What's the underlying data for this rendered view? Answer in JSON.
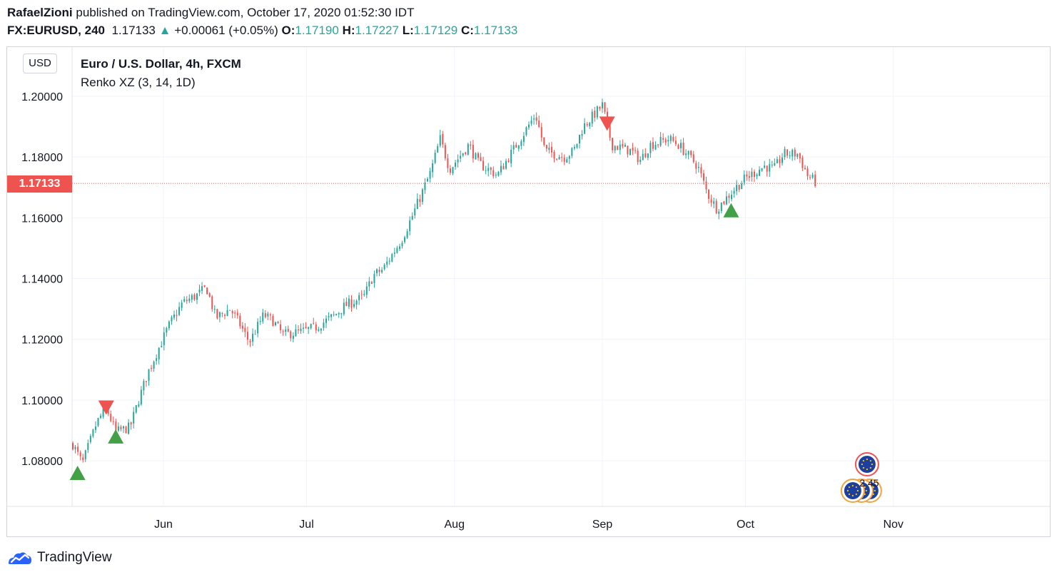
{
  "header": {
    "author": "RafaelZioni",
    "published_text": "published on TradingView.com, October 17, 2020 01:52:30 IDT",
    "symbol": "FX:EURUSD, 240",
    "last": "1.17133",
    "change": "+0.00061 (+0.05%)",
    "o_label": "O:",
    "o_value": "1.17190",
    "h_label": "H:",
    "h_value": "1.17227",
    "l_label": "L:",
    "l_value": "1.17129",
    "c_label": "C:",
    "c_value": "1.17133"
  },
  "currency_button": "USD",
  "chart_title": "Euro / U.S. Dollar, 4h, FXCM",
  "indicator_label": "Renko XZ (3, 14, 1D)",
  "price_tag": "1.17133",
  "brand": "TradingView",
  "colors": {
    "up": "#26a69a",
    "down": "#ef5350",
    "buy_marker": "#43a047",
    "sell_marker": "#ef5350",
    "grid": "#f0f3fa"
  },
  "chart_data": {
    "type": "candlestick",
    "title": "Euro / U.S. Dollar, 4h, FXCM",
    "x_ticks": [
      "Jun",
      "Jul",
      "Aug",
      "Sep",
      "Oct",
      "Nov"
    ],
    "y_ticks": [
      "1.20000",
      "1.18000",
      "1.16000",
      "1.14000",
      "1.12000",
      "1.10000",
      "1.08000"
    ],
    "ylim": [
      1.065,
      1.2035
    ],
    "last_price": 1.17133,
    "grid": true,
    "close_path": [
      {
        "date": "2020-05-13",
        "close": 1.0855
      },
      {
        "date": "2020-05-15",
        "close": 1.079
      },
      {
        "date": "2020-05-18",
        "close": 1.0925
      },
      {
        "date": "2020-05-20",
        "close": 1.0975
      },
      {
        "date": "2020-05-22",
        "close": 1.0895
      },
      {
        "date": "2020-05-25",
        "close": 1.091
      },
      {
        "date": "2020-05-27",
        "close": 1.101
      },
      {
        "date": "2020-05-29",
        "close": 1.11
      },
      {
        "date": "2020-06-02",
        "close": 1.124
      },
      {
        "date": "2020-06-05",
        "close": 1.132
      },
      {
        "date": "2020-06-08",
        "close": 1.1345
      },
      {
        "date": "2020-06-10",
        "close": 1.137
      },
      {
        "date": "2020-06-12",
        "close": 1.127
      },
      {
        "date": "2020-06-15",
        "close": 1.13
      },
      {
        "date": "2020-06-17",
        "close": 1.125
      },
      {
        "date": "2020-06-19",
        "close": 1.119
      },
      {
        "date": "2020-06-22",
        "close": 1.128
      },
      {
        "date": "2020-06-24",
        "close": 1.126
      },
      {
        "date": "2020-06-26",
        "close": 1.1215
      },
      {
        "date": "2020-06-30",
        "close": 1.1225
      },
      {
        "date": "2020-07-03",
        "close": 1.124
      },
      {
        "date": "2020-07-07",
        "close": 1.128
      },
      {
        "date": "2020-07-09",
        "close": 1.131
      },
      {
        "date": "2020-07-13",
        "close": 1.134
      },
      {
        "date": "2020-07-15",
        "close": 1.141
      },
      {
        "date": "2020-07-17",
        "close": 1.143
      },
      {
        "date": "2020-07-21",
        "close": 1.153
      },
      {
        "date": "2020-07-23",
        "close": 1.16
      },
      {
        "date": "2020-07-27",
        "close": 1.175
      },
      {
        "date": "2020-07-29",
        "close": 1.186
      },
      {
        "date": "2020-07-31",
        "close": 1.176
      },
      {
        "date": "2020-08-04",
        "close": 1.184
      },
      {
        "date": "2020-08-06",
        "close": 1.178
      },
      {
        "date": "2020-08-10",
        "close": 1.174
      },
      {
        "date": "2020-08-12",
        "close": 1.179
      },
      {
        "date": "2020-08-14",
        "close": 1.184
      },
      {
        "date": "2020-08-18",
        "close": 1.194
      },
      {
        "date": "2020-08-20",
        "close": 1.182
      },
      {
        "date": "2020-08-24",
        "close": 1.18
      },
      {
        "date": "2020-08-26",
        "close": 1.182
      },
      {
        "date": "2020-08-28",
        "close": 1.19
      },
      {
        "date": "2020-09-01",
        "close": 1.197
      },
      {
        "date": "2020-09-03",
        "close": 1.184
      },
      {
        "date": "2020-09-07",
        "close": 1.182
      },
      {
        "date": "2020-09-09",
        "close": 1.179
      },
      {
        "date": "2020-09-11",
        "close": 1.184
      },
      {
        "date": "2020-09-15",
        "close": 1.186
      },
      {
        "date": "2020-09-17",
        "close": 1.184
      },
      {
        "date": "2020-09-21",
        "close": 1.177
      },
      {
        "date": "2020-09-23",
        "close": 1.168
      },
      {
        "date": "2020-09-25",
        "close": 1.163
      },
      {
        "date": "2020-09-29",
        "close": 1.17
      },
      {
        "date": "2020-10-01",
        "close": 1.173
      },
      {
        "date": "2020-10-05",
        "close": 1.177
      },
      {
        "date": "2020-10-07",
        "close": 1.176
      },
      {
        "date": "2020-10-09",
        "close": 1.181
      },
      {
        "date": "2020-10-12",
        "close": 1.181
      },
      {
        "date": "2020-10-14",
        "close": 1.174
      },
      {
        "date": "2020-10-16",
        "close": 1.1713
      }
    ],
    "signals": [
      {
        "type": "buy",
        "date": "2020-05-14",
        "price": 1.076
      },
      {
        "type": "sell",
        "date": "2020-05-20",
        "price": 1.0975
      },
      {
        "type": "buy",
        "date": "2020-05-22",
        "price": 1.088
      },
      {
        "type": "sell",
        "date": "2020-09-02",
        "price": 1.191
      },
      {
        "type": "buy",
        "date": "2020-09-28",
        "price": 1.1625
      }
    ],
    "events": [
      {
        "label": "2",
        "date": "2020-10-22"
      },
      {
        "label": "4",
        "date": "2020-10-22"
      },
      {
        "label": "5",
        "date": "2020-10-22"
      }
    ]
  }
}
